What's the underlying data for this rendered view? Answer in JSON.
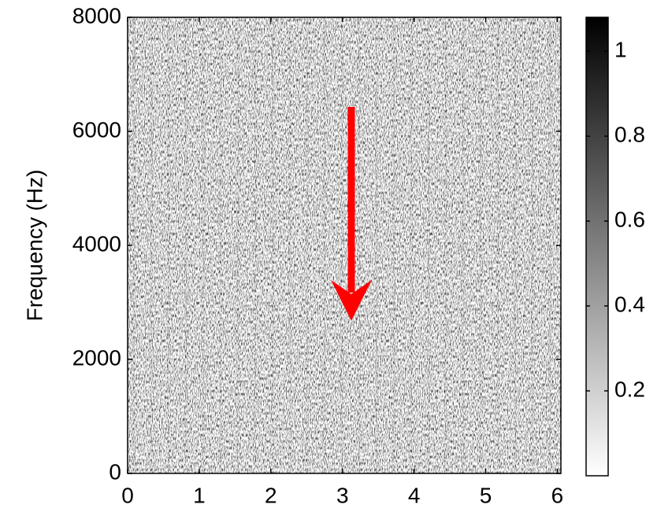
{
  "chart_data": {
    "type": "spectrogram",
    "ylabel": "Frequency  (Hz)",
    "xlim": [
      0,
      6.05
    ],
    "xticks": [
      0,
      1,
      2,
      3,
      4,
      5,
      6
    ],
    "ylim": [
      0,
      8000
    ],
    "yticks": [
      0,
      2000,
      4000,
      6000,
      8000
    ],
    "colormap": "gray",
    "colorbar": {
      "lim": [
        0,
        1.08
      ],
      "ticks": [
        0.2,
        0.4,
        0.6,
        0.8,
        1
      ]
    }
  }
}
